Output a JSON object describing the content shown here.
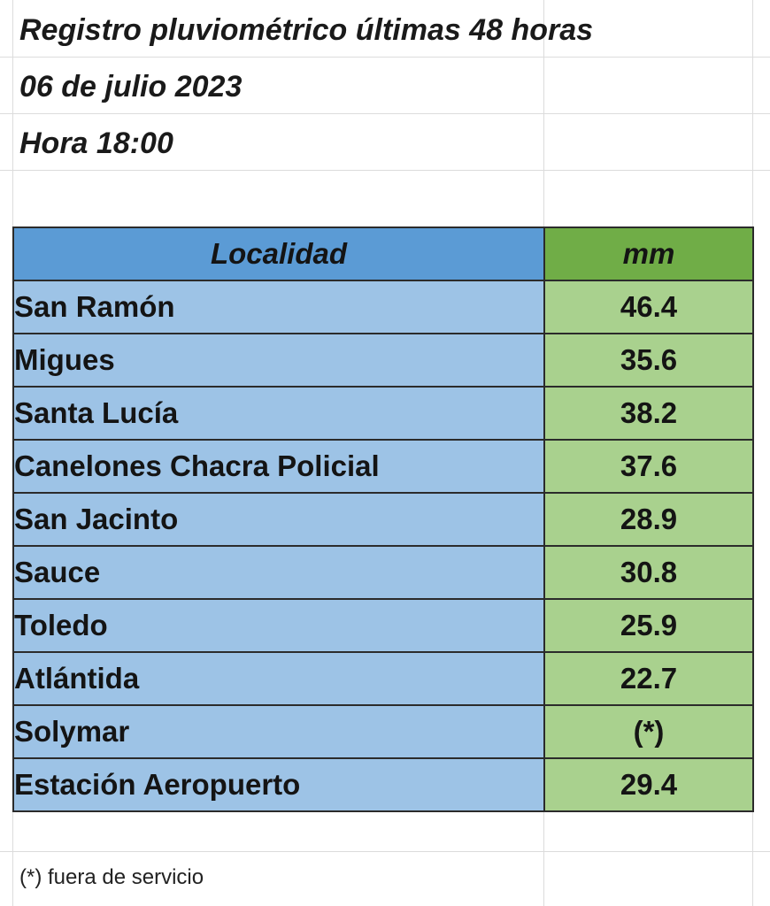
{
  "header": {
    "title": "Registro pluviométrico últimas 48 horas",
    "date": "06 de julio 2023",
    "time": "Hora 18:00"
  },
  "table": {
    "columns": [
      "Localidad",
      "mm"
    ],
    "rows": [
      {
        "locality": "San Ramón",
        "mm": "46.4"
      },
      {
        "locality": "Migues",
        "mm": "35.6"
      },
      {
        "locality": "Santa Lucía",
        "mm": "38.2"
      },
      {
        "locality": "Canelones Chacra Policial",
        "mm": "37.6"
      },
      {
        "locality": "San Jacinto",
        "mm": "28.9"
      },
      {
        "locality": "Sauce",
        "mm": "30.8"
      },
      {
        "locality": "Toledo",
        "mm": "25.9"
      },
      {
        "locality": "Atlántida",
        "mm": "22.7"
      },
      {
        "locality": "Solymar",
        "mm": "(*)"
      },
      {
        "locality": "Estación Aeropuerto",
        "mm": "29.4"
      }
    ]
  },
  "footnote": "(*) fuera de servicio",
  "colors": {
    "header_localidad": "#5b9bd5",
    "header_mm": "#70ad47",
    "cell_localidad": "#9dc3e6",
    "cell_mm": "#a9d18e"
  }
}
